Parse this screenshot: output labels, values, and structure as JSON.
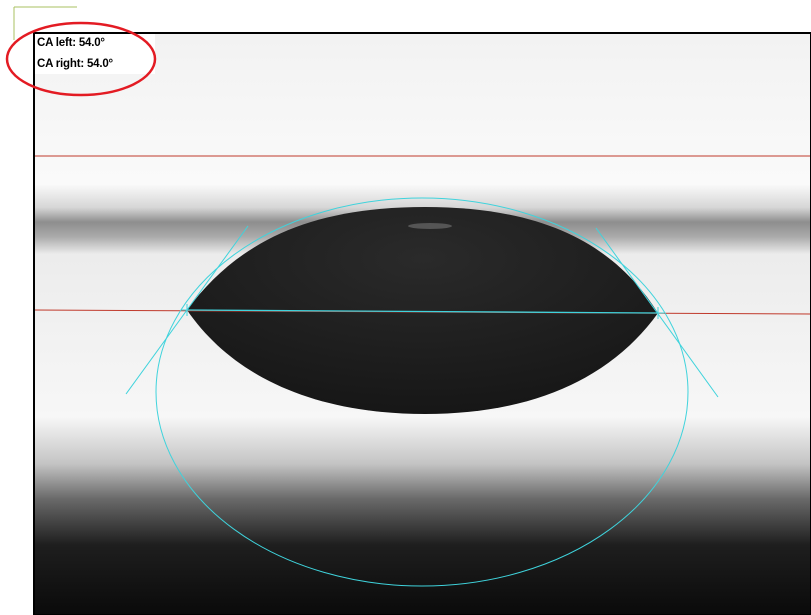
{
  "measurements": {
    "left_label": "CA left: 54.0°",
    "right_label": "CA right: 54.0°",
    "left_angle_deg": 54.0,
    "right_angle_deg": 54.0
  },
  "colors": {
    "frame": "#000000",
    "baseline": "#c0392b",
    "fit_overlay": "#3fd3dc",
    "highlight_ring": "#e31b23",
    "corner_mark": "#a8c060",
    "droplet": "#1c1c1c"
  }
}
